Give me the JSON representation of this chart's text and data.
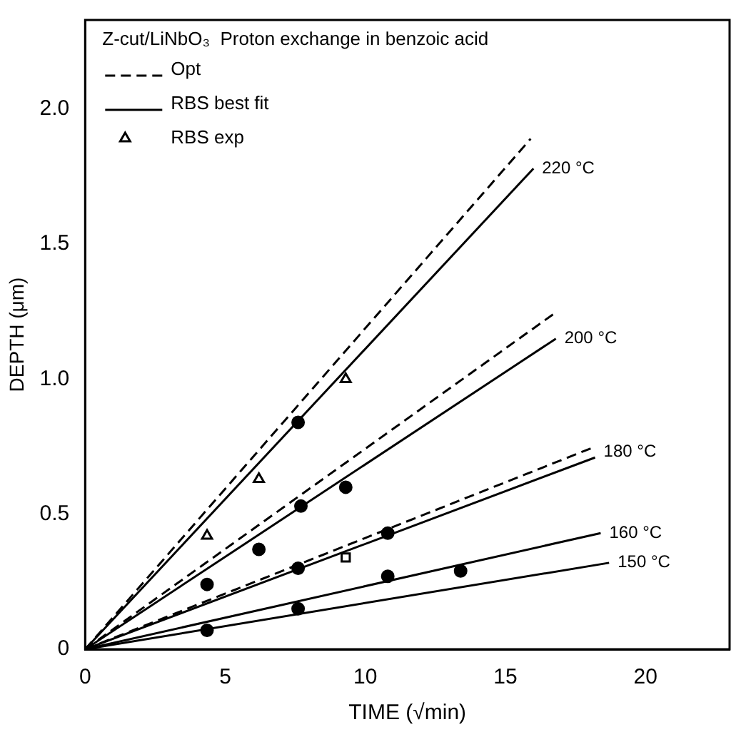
{
  "chart_data": {
    "type": "line",
    "title": "Z-cut/LiNbO₃  Proton exchange in benzoic acid",
    "xlabel": "TIME (√min)",
    "ylabel": "DEPTH (μm)",
    "xlim": [
      0,
      23
    ],
    "ylim": [
      0,
      2.33
    ],
    "xticks": [
      0,
      5,
      10,
      15,
      20
    ],
    "yticks": [
      0,
      {
        "value": 0.5,
        "label": "0.5"
      },
      {
        "value": 1,
        "label": "1.0"
      },
      {
        "value": 1.5,
        "label": "1.5"
      },
      {
        "value": 2,
        "label": "2.0"
      }
    ],
    "grid": false,
    "legend": "top left",
    "marker": "none",
    "series": [
      {
        "name": "Opt",
        "line_style": "dashed",
        "color": "#000000",
        "x": [
          0,
          15.9
        ],
        "values": [
          0,
          1.89
        ]
      },
      {
        "line_style": "dashed",
        "color": "#000000",
        "x": [
          0,
          16.7
        ],
        "values": [
          0,
          1.24
        ]
      },
      {
        "line_style": "dashed",
        "color": "#000000",
        "x": [
          0,
          18.2
        ],
        "values": [
          0,
          0.75
        ]
      },
      {
        "name": "RBS best fit",
        "line_style": "solid",
        "color": "#000000",
        "x": [
          0,
          16
        ],
        "values": [
          0,
          1.78
        ]
      },
      {
        "line_style": "solid",
        "color": "#000000",
        "x": [
          0,
          16.8
        ],
        "values": [
          0,
          1.15
        ]
      },
      {
        "line_style": "solid",
        "color": "#000000",
        "x": [
          0,
          18.2
        ],
        "values": [
          0,
          0.71
        ]
      },
      {
        "line_style": "solid",
        "color": "#000000",
        "x": [
          0,
          18.4
        ],
        "values": [
          0,
          0.43
        ]
      },
      {
        "line_style": "solid",
        "color": "#000000",
        "x": [
          0,
          18.7
        ],
        "values": [
          0,
          0.32
        ]
      },
      {
        "name": "RBS exp",
        "type": "scatter",
        "marker": "triangle",
        "color": "#000000",
        "x": [
          4.35,
          6.2,
          9.3
        ],
        "values": [
          0.42,
          0.63,
          1.0
        ]
      },
      {
        "type": "scatter",
        "marker": "circle",
        "color": "#000000",
        "x": [
          7.6,
          4.35,
          6.2,
          7.7,
          9.3,
          7.6,
          10.8,
          7.6,
          10.8,
          13.4,
          4.35
        ],
        "values": [
          0.84,
          0.24,
          0.37,
          0.53,
          0.6,
          0.3,
          0.43,
          0.15,
          0.27,
          0.29,
          0.07
        ]
      },
      {
        "type": "scatter",
        "marker": "square",
        "color": "#000000",
        "x": [
          9.3
        ],
        "values": [
          0.34
        ]
      }
    ],
    "annotations": [
      {
        "text": "220 °C",
        "x": 16,
        "y": 1.78
      },
      {
        "text": "200 °C",
        "x": 16.8,
        "y": 1.15
      },
      {
        "text": "180 °C",
        "x": 18.2,
        "y": 0.73
      },
      {
        "text": "160 °C",
        "x": 18.4,
        "y": 0.43
      },
      {
        "text": "150 °C",
        "x": 18.7,
        "y": 0.32
      }
    ]
  }
}
